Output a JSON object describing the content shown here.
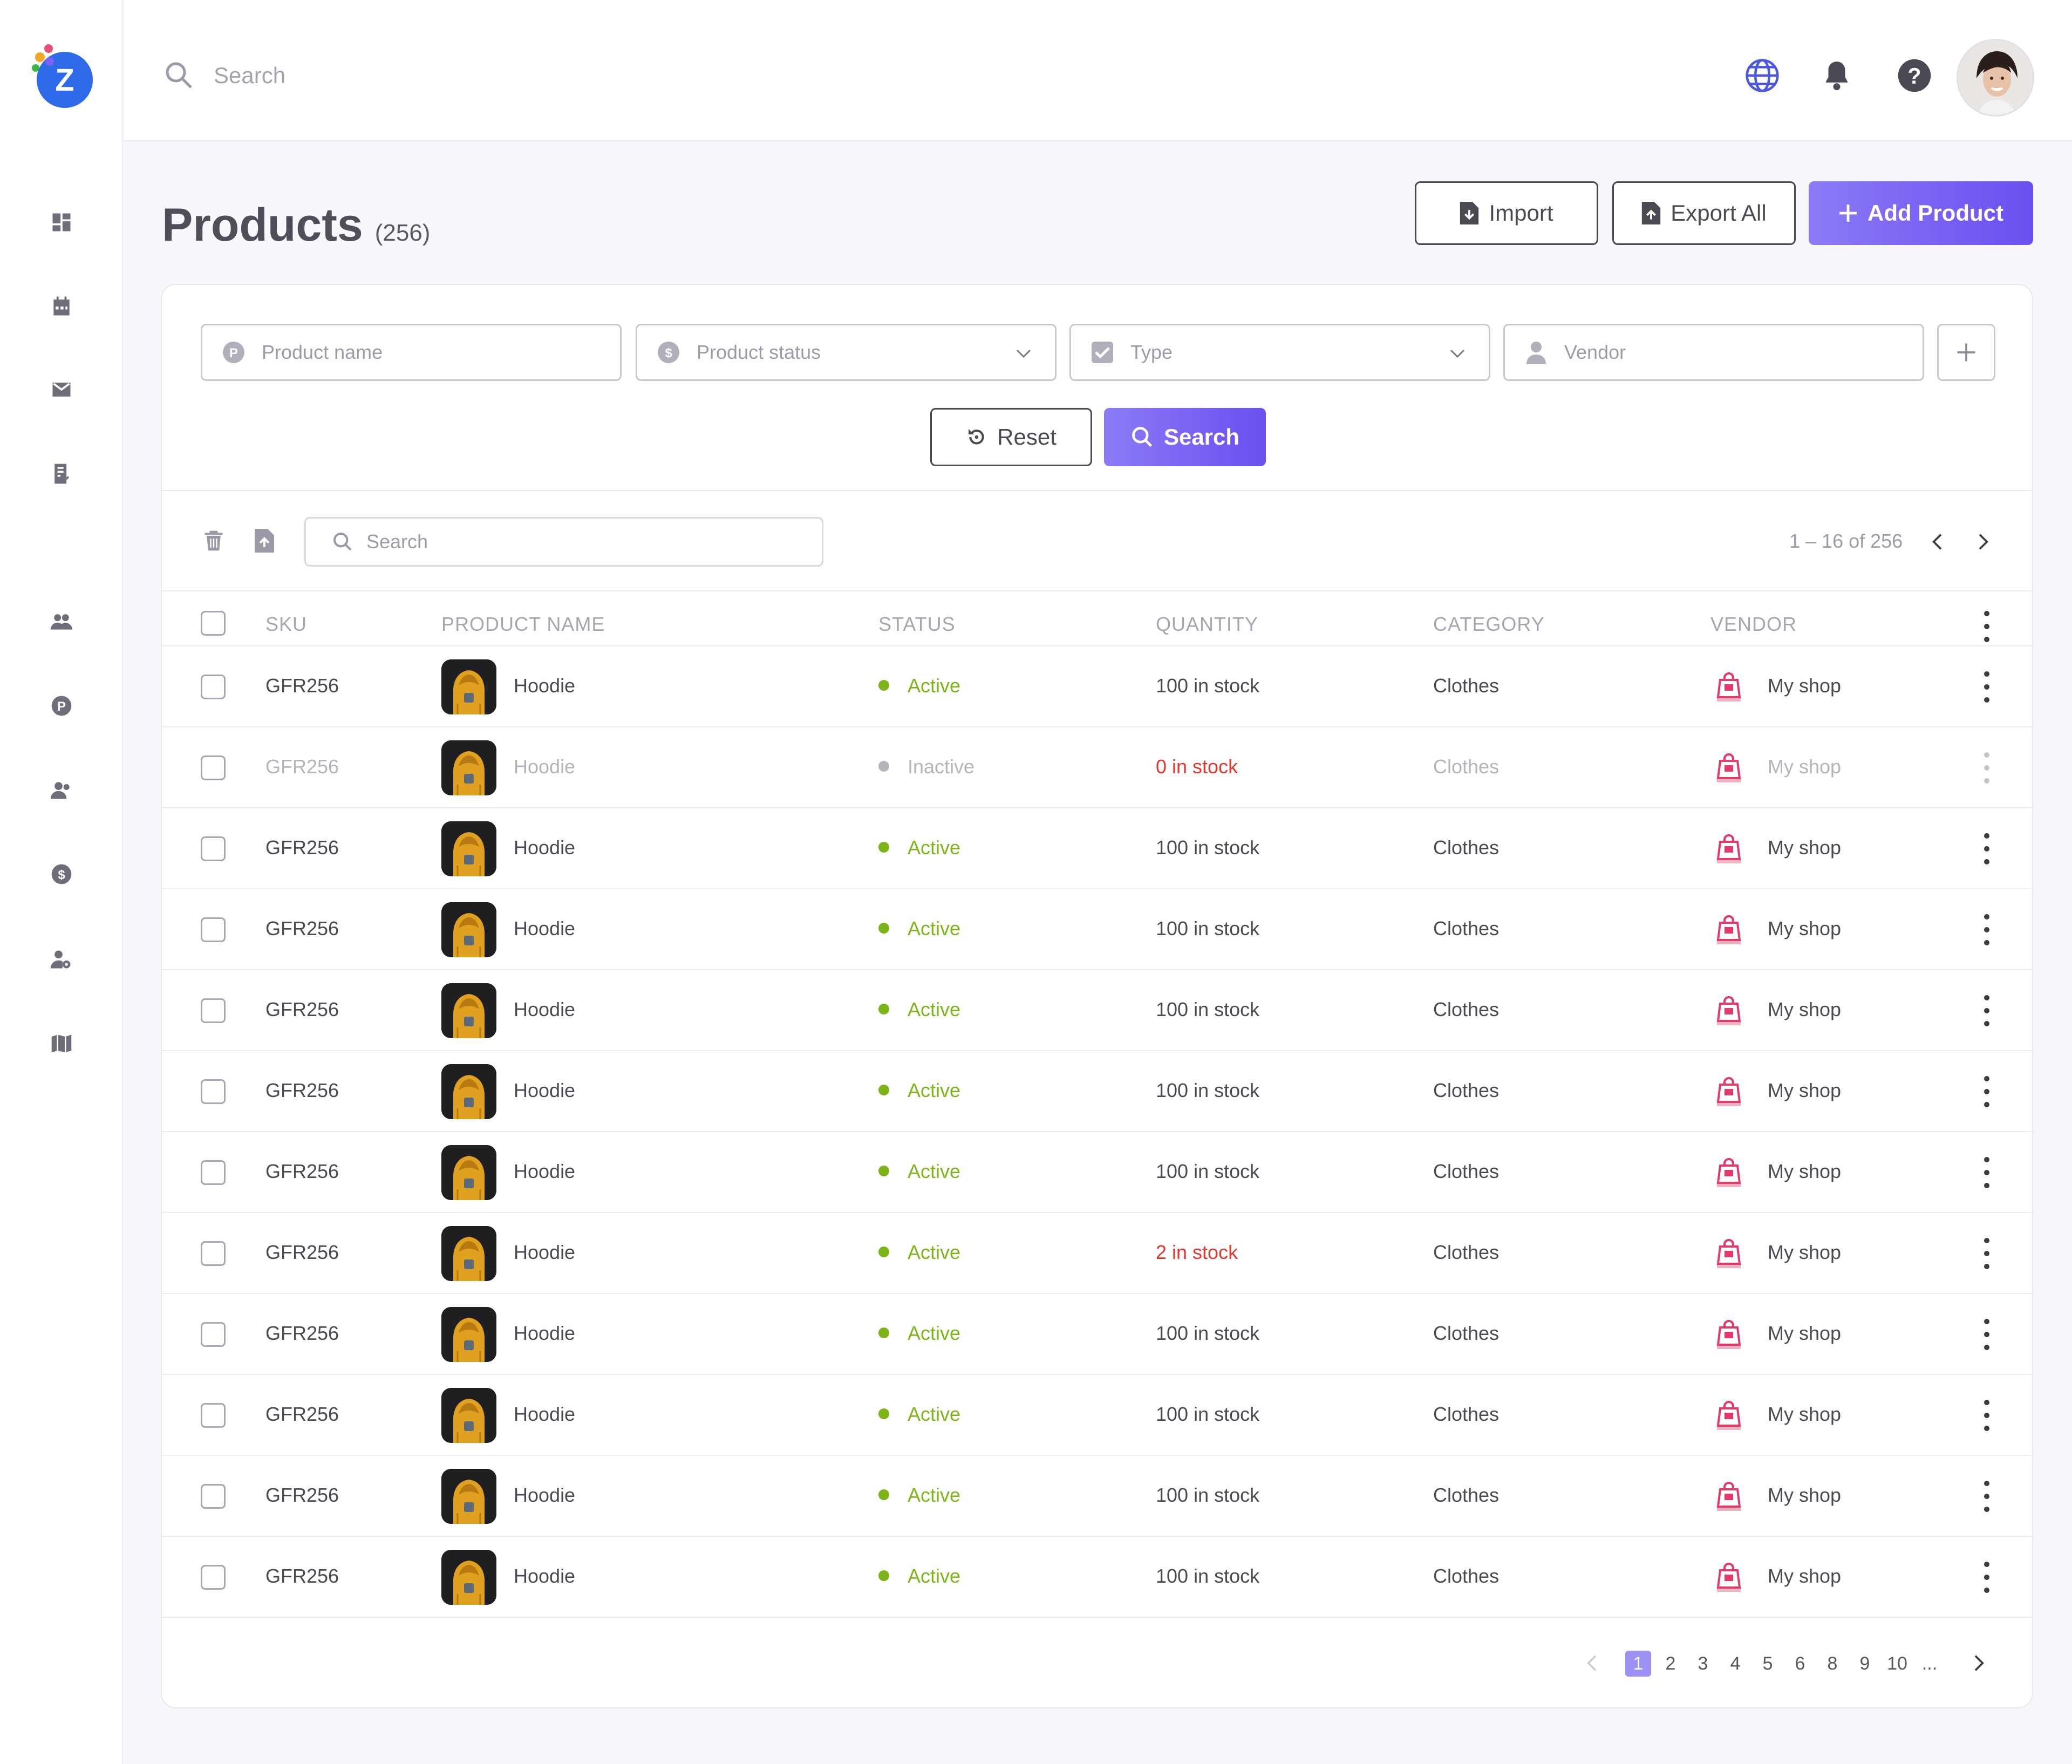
{
  "app": {
    "logo_letter": "Z",
    "brand_color": "#2f6be8",
    "accent_color": "#6a4ff0"
  },
  "sidebar": {
    "items": [
      {
        "icon": "dashboard-icon"
      },
      {
        "icon": "calendar-icon"
      },
      {
        "icon": "mail-icon"
      },
      {
        "icon": "invoice-icon"
      },
      {
        "icon": "users-group-icon"
      },
      {
        "icon": "product-p-icon"
      },
      {
        "icon": "customers-icon"
      },
      {
        "icon": "dollar-icon"
      },
      {
        "icon": "user-settings-icon"
      },
      {
        "icon": "map-icon"
      }
    ]
  },
  "topbar": {
    "search_placeholder": "Search",
    "icons": [
      "globe-icon",
      "bell-icon",
      "help-icon"
    ]
  },
  "page": {
    "title": "Products",
    "count": "(256)",
    "import_label": "Import",
    "export_label": "Export All",
    "add_label": "Add Product"
  },
  "filters": {
    "product_name": "Product name",
    "product_status": "Product status",
    "type": "Type",
    "vendor": "Vendor",
    "reset_label": "Reset",
    "search_label": "Search"
  },
  "table_toolbar": {
    "search_placeholder": "Search",
    "range": "1 – 16 of 256"
  },
  "table": {
    "columns": [
      "SKU",
      "PRODUCT NAME",
      "STATUS",
      "QUANTITY",
      "CATEGORY",
      "VENDOR"
    ],
    "rows": [
      {
        "sku": "GFR256",
        "name": "Hoodie",
        "status": "Active",
        "quantity": "100 in  stock",
        "category": "Clothes",
        "vendor": "My shop",
        "dim": false,
        "low": false
      },
      {
        "sku": "GFR256",
        "name": "Hoodie",
        "status": "Inactive",
        "quantity": "0 in stock",
        "category": "Clothes",
        "vendor": "My shop",
        "dim": true,
        "low": true
      },
      {
        "sku": "GFR256",
        "name": "Hoodie",
        "status": "Active",
        "quantity": "100 in stock",
        "category": "Clothes",
        "vendor": "My shop",
        "dim": false,
        "low": false
      },
      {
        "sku": "GFR256",
        "name": "Hoodie",
        "status": "Active",
        "quantity": "100 in stock",
        "category": "Clothes",
        "vendor": "My shop",
        "dim": false,
        "low": false
      },
      {
        "sku": "GFR256",
        "name": "Hoodie",
        "status": "Active",
        "quantity": "100 in stock",
        "category": "Clothes",
        "vendor": "My shop",
        "dim": false,
        "low": false
      },
      {
        "sku": "GFR256",
        "name": "Hoodie",
        "status": "Active",
        "quantity": "100 in stock",
        "category": "Clothes",
        "vendor": "My shop",
        "dim": false,
        "low": false
      },
      {
        "sku": "GFR256",
        "name": "Hoodie",
        "status": "Active",
        "quantity": "100 in stock",
        "category": "Clothes",
        "vendor": "My shop",
        "dim": false,
        "low": false
      },
      {
        "sku": "GFR256",
        "name": "Hoodie",
        "status": "Active",
        "quantity": "2 in stock",
        "category": "Clothes",
        "vendor": "My shop",
        "dim": false,
        "low": true
      },
      {
        "sku": "GFR256",
        "name": "Hoodie",
        "status": "Active",
        "quantity": "100 in stock",
        "category": "Clothes",
        "vendor": "My shop",
        "dim": false,
        "low": false
      },
      {
        "sku": "GFR256",
        "name": "Hoodie",
        "status": "Active",
        "quantity": "100 in stock",
        "category": "Clothes",
        "vendor": "My shop",
        "dim": false,
        "low": false
      },
      {
        "sku": "GFR256",
        "name": "Hoodie",
        "status": "Active",
        "quantity": "100 in stock",
        "category": "Clothes",
        "vendor": "My shop",
        "dim": false,
        "low": false
      },
      {
        "sku": "GFR256",
        "name": "Hoodie",
        "status": "Active",
        "quantity": "100 in stock",
        "category": "Clothes",
        "vendor": "My shop",
        "dim": false,
        "low": false
      }
    ],
    "colors": {
      "active": "#7cb518",
      "inactive": "#b4b4bc",
      "low_stock": "#e0392d"
    }
  },
  "pagination": {
    "pages": [
      "1",
      "2",
      "3",
      "4",
      "5",
      "6",
      "8",
      "9",
      "10",
      "..."
    ],
    "current": "1"
  }
}
